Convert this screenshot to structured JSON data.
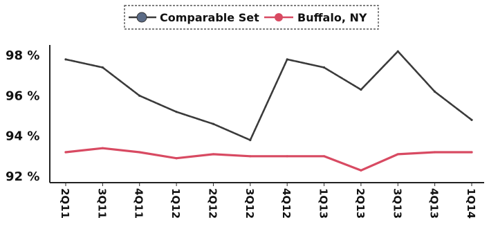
{
  "colors": {
    "comparable": "#3a3a3a",
    "comparable_marker": "#5b6b86",
    "buffalo": "#d84a62",
    "axis": "#222222",
    "legend_border": "#555555"
  },
  "chart_data": {
    "type": "line",
    "categories": [
      "2Q11",
      "3Q11",
      "4Q11",
      "1Q12",
      "2Q12",
      "3Q12",
      "4Q12",
      "1Q13",
      "2Q13",
      "3Q13",
      "4Q13",
      "1Q14"
    ],
    "series": [
      {
        "name": "Comparable Set",
        "values": [
          97.8,
          97.4,
          96.0,
          95.2,
          94.6,
          93.8,
          97.8,
          97.4,
          96.3,
          98.2,
          96.2,
          94.8
        ]
      },
      {
        "name": "Buffalo, NY",
        "values": [
          93.2,
          93.4,
          93.2,
          92.9,
          93.1,
          93.0,
          93.0,
          93.0,
          92.3,
          93.1,
          93.2,
          93.2
        ]
      }
    ],
    "yticks": [
      "98 %",
      "96 %",
      "94 %",
      "92 %"
    ],
    "ylim": [
      92,
      98.5
    ],
    "xlabel": "",
    "ylabel": "",
    "title": "",
    "grid": false,
    "legend": "top-center"
  }
}
